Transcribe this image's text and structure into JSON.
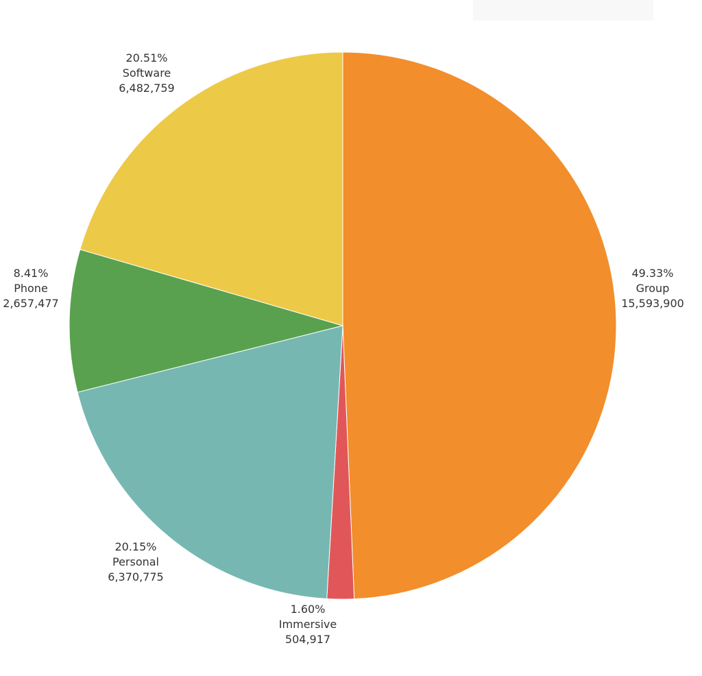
{
  "chart_data": {
    "type": "pie",
    "start_angle_deg": 0,
    "direction": "clockwise",
    "slices": [
      {
        "label": "Group",
        "value": 15593900,
        "value_text": "15,593,900",
        "percent": 49.33,
        "percent_text": "49.33%",
        "color": "#f28e2b"
      },
      {
        "label": "Immersive",
        "value": 504917,
        "value_text": "504,917",
        "percent": 1.6,
        "percent_text": "1.60%",
        "color": "#e15759"
      },
      {
        "label": "Personal",
        "value": 6370775,
        "value_text": "6,370,775",
        "percent": 20.15,
        "percent_text": "20.15%",
        "color": "#76b7b2"
      },
      {
        "label": "Phone",
        "value": 2657477,
        "value_text": "2,657,477",
        "percent": 8.41,
        "percent_text": "8.41%",
        "color": "#59a14f"
      },
      {
        "label": "Software",
        "value": 6482759,
        "value_text": "6,482,759",
        "percent": 20.51,
        "percent_text": "20.51%",
        "color": "#edc948"
      }
    ]
  }
}
